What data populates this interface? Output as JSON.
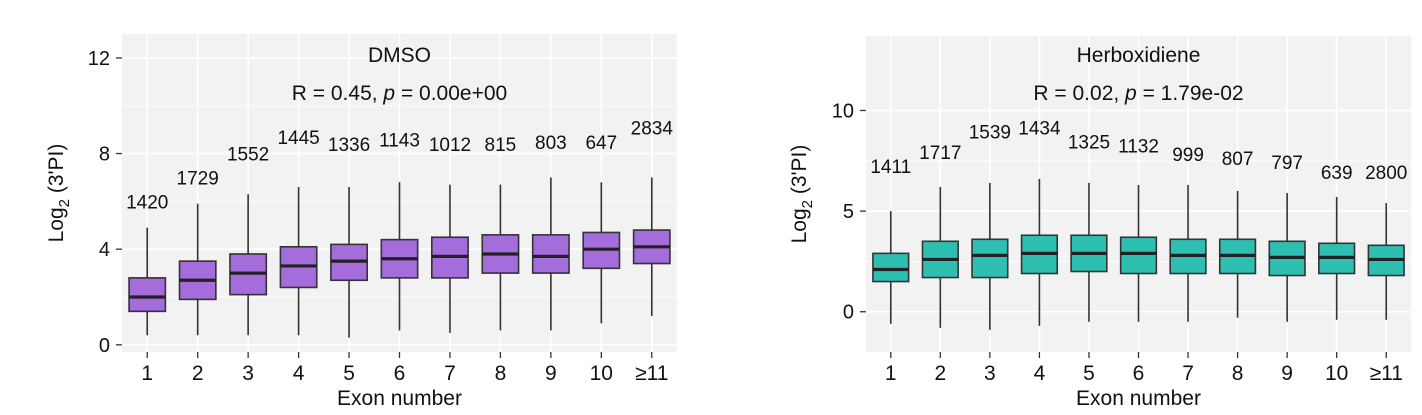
{
  "chart_data": [
    {
      "type": "box",
      "title": "DMSO",
      "subtitle_pre": "R = 0.45, ",
      "subtitle_p": "p",
      "subtitle_post": " = 0.00e+00",
      "xlabel": "Exon number",
      "ylabel_main": "Log",
      "ylabel_sub": "2",
      "ylabel_rest": " (3'PI)",
      "ylim": [
        -0.3,
        13
      ],
      "yticks": [
        0,
        4,
        8,
        12
      ],
      "fill": "#a56ddb",
      "categories": [
        "1",
        "2",
        "3",
        "4",
        "5",
        "6",
        "7",
        "8",
        "9",
        "10",
        "≥11"
      ],
      "counts": [
        "1420",
        "1729",
        "1552",
        "1445",
        "1336",
        "1143",
        "1012",
        "815",
        "803",
        "647",
        "2834"
      ],
      "boxes": [
        {
          "whislo": 0.4,
          "q1": 1.4,
          "med": 2.0,
          "q3": 2.8,
          "whishi": 4.9
        },
        {
          "whislo": 0.4,
          "q1": 1.9,
          "med": 2.7,
          "q3": 3.5,
          "whishi": 5.9
        },
        {
          "whislo": 0.4,
          "q1": 2.1,
          "med": 3.0,
          "q3": 3.8,
          "whishi": 6.3
        },
        {
          "whislo": 0.4,
          "q1": 2.4,
          "med": 3.3,
          "q3": 4.1,
          "whishi": 6.6
        },
        {
          "whislo": 0.3,
          "q1": 2.7,
          "med": 3.5,
          "q3": 4.2,
          "whishi": 6.6
        },
        {
          "whislo": 0.6,
          "q1": 2.8,
          "med": 3.6,
          "q3": 4.4,
          "whishi": 6.8
        },
        {
          "whislo": 0.5,
          "q1": 2.8,
          "med": 3.7,
          "q3": 4.5,
          "whishi": 6.7
        },
        {
          "whislo": 0.6,
          "q1": 3.0,
          "med": 3.8,
          "q3": 4.6,
          "whishi": 6.7
        },
        {
          "whislo": 0.6,
          "q1": 3.0,
          "med": 3.7,
          "q3": 4.6,
          "whishi": 7.0
        },
        {
          "whislo": 0.9,
          "q1": 3.2,
          "med": 4.0,
          "q3": 4.7,
          "whishi": 6.8
        },
        {
          "whislo": 1.2,
          "q1": 3.4,
          "med": 4.1,
          "q3": 4.8,
          "whishi": 7.0
        }
      ],
      "count_y": [
        5.7,
        6.7,
        7.7,
        8.4,
        8.1,
        8.3,
        8.1,
        8.1,
        8.2,
        8.2,
        8.8
      ],
      "grid": true
    },
    {
      "type": "box",
      "title": "Herboxidiene",
      "subtitle_pre": "R = 0.02, ",
      "subtitle_p": "p",
      "subtitle_post": " = 1.79e-02",
      "xlabel": "Exon number",
      "ylabel_main": "Log",
      "ylabel_sub": "2",
      "ylabel_rest": " (3'PI)",
      "ylim": [
        -2,
        13.7
      ],
      "yticks": [
        0,
        5,
        10
      ],
      "fill": "#2ebfb1",
      "categories": [
        "1",
        "2",
        "3",
        "4",
        "5",
        "6",
        "7",
        "8",
        "9",
        "10",
        "≥11"
      ],
      "counts": [
        "1411",
        "1717",
        "1539",
        "1434",
        "1325",
        "1132",
        "999",
        "807",
        "797",
        "639",
        "2800"
      ],
      "boxes": [
        {
          "whislo": -0.6,
          "q1": 1.5,
          "med": 2.1,
          "q3": 2.9,
          "whishi": 5.0
        },
        {
          "whislo": -0.8,
          "q1": 1.7,
          "med": 2.6,
          "q3": 3.5,
          "whishi": 6.2
        },
        {
          "whislo": -0.9,
          "q1": 1.7,
          "med": 2.8,
          "q3": 3.6,
          "whishi": 6.4
        },
        {
          "whislo": -0.7,
          "q1": 1.9,
          "med": 2.9,
          "q3": 3.8,
          "whishi": 6.6
        },
        {
          "whislo": -0.5,
          "q1": 2.0,
          "med": 2.9,
          "q3": 3.8,
          "whishi": 6.4
        },
        {
          "whislo": -0.5,
          "q1": 1.9,
          "med": 2.9,
          "q3": 3.7,
          "whishi": 6.3
        },
        {
          "whislo": -0.5,
          "q1": 1.9,
          "med": 2.8,
          "q3": 3.6,
          "whishi": 6.3
        },
        {
          "whislo": -0.3,
          "q1": 1.9,
          "med": 2.8,
          "q3": 3.6,
          "whishi": 6.0
        },
        {
          "whislo": -0.5,
          "q1": 1.8,
          "med": 2.7,
          "q3": 3.5,
          "whishi": 5.9
        },
        {
          "whislo": -0.4,
          "q1": 1.9,
          "med": 2.7,
          "q3": 3.4,
          "whishi": 5.7
        },
        {
          "whislo": -0.4,
          "q1": 1.8,
          "med": 2.6,
          "q3": 3.3,
          "whishi": 5.4
        }
      ],
      "count_y": [
        6.9,
        7.6,
        8.6,
        8.8,
        8.1,
        7.9,
        7.5,
        7.3,
        7.1,
        6.6,
        6.6
      ],
      "grid": true
    }
  ]
}
